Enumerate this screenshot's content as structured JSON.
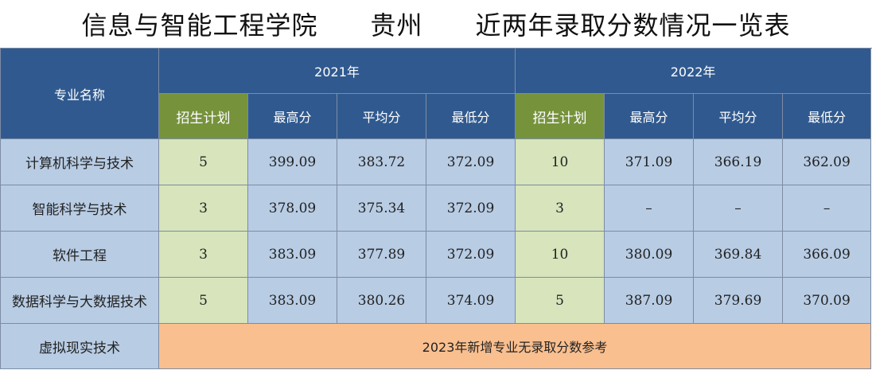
{
  "title": "信息与智能工程学院　　贵州　　近两年录取分数情况一览表",
  "header": {
    "major_label": "专业名称",
    "year1": "2021年",
    "year2": "2022年",
    "sub_columns": [
      "招生计划",
      "最高分",
      "平均分",
      "最低分",
      "招生计划",
      "最高分",
      "平均分",
      "最低分"
    ]
  },
  "rows": [
    {
      "name": "计算机科学与技术",
      "values": [
        "5",
        "399.09",
        "383.72",
        "372.09",
        "10",
        "371.09",
        "366.19",
        "362.09"
      ]
    },
    {
      "name": "智能科学与技术",
      "values": [
        "3",
        "378.09",
        "375.34",
        "372.09",
        "3",
        "–",
        "–",
        "–"
      ]
    },
    {
      "name": "软件工程",
      "values": [
        "3",
        "383.09",
        "377.89",
        "372.09",
        "10",
        "380.09",
        "369.84",
        "366.09"
      ]
    },
    {
      "name": "数据科学与大数据技术",
      "values": [
        "5",
        "383.09",
        "380.26",
        "374.09",
        "5",
        "387.09",
        "379.69",
        "370.09"
      ]
    }
  ],
  "last_row": {
    "name": "虚拟现实技术",
    "note": "2023年新增专业无录取分数参考"
  },
  "colors": {
    "header_blue": "#305a8f",
    "plan_header_green": "#76933c",
    "cell_blue": "#b8cce4",
    "cell_green": "#d7e4bc",
    "note_orange": "#f9bf8f"
  }
}
